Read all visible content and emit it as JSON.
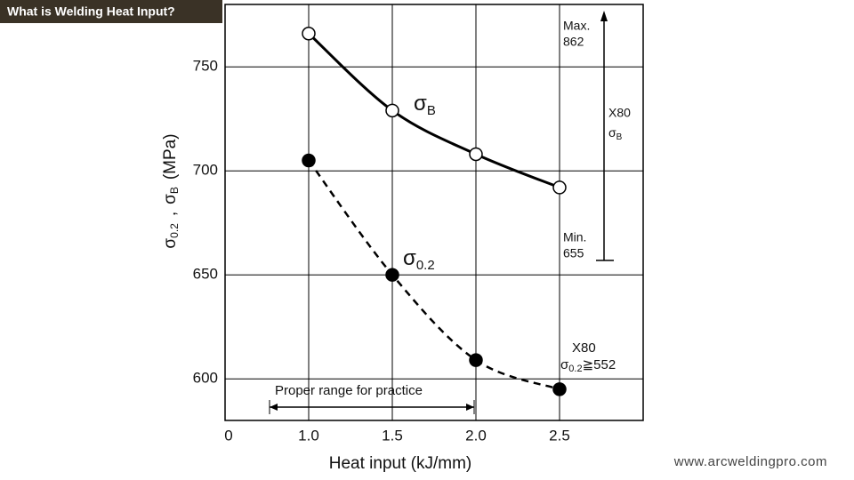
{
  "header": {
    "title": "What is Welding Heat Input?"
  },
  "footer": {
    "text": "www.arcweldingpro.com"
  },
  "chart_data": {
    "type": "line",
    "xlabel": "Heat input (kJ/mm)",
    "x_origin_label": "0",
    "ylabel": [
      {
        "text": "σ"
      },
      {
        "text": "0.2",
        "sub": true
      },
      {
        "text": ","
      },
      {
        "text": "σ"
      },
      {
        "text": "B",
        "sub": true
      },
      {
        "text": "(MPa)"
      }
    ],
    "x": [
      1.0,
      1.5,
      2.0,
      2.5
    ],
    "series": [
      {
        "symbol": "σ",
        "subscript": "B",
        "color": "#000000",
        "style": "solid",
        "marker": "open",
        "values": [
          766,
          729,
          708,
          692
        ]
      },
      {
        "symbol": "σ",
        "subscript": "0.2",
        "color": "#000000",
        "style": "dashed",
        "marker": "filled",
        "values": [
          705,
          650,
          609,
          595
        ]
      }
    ],
    "xlim": [
      0.5,
      3.0
    ],
    "ylim": [
      580,
      780
    ],
    "xticks": [
      {
        "value": 1.0,
        "label": "1.0"
      },
      1.5,
      {
        "value": 2.0,
        "label": "2.0"
      },
      2.5
    ],
    "yticks": [
      600,
      650,
      700,
      750
    ],
    "grid": true,
    "annotations": {
      "range_label": "Proper range for practice",
      "max_label": "Max.",
      "max_value": 862,
      "min_label": "Min.",
      "min_value": 655,
      "spec_grade": "X80",
      "spec_symbol": "σ",
      "spec_subscript": "B",
      "yield_grade": "X80",
      "yield_symbol": "σ",
      "yield_subscript": "0.2",
      "yield_limit": "≧552"
    }
  }
}
